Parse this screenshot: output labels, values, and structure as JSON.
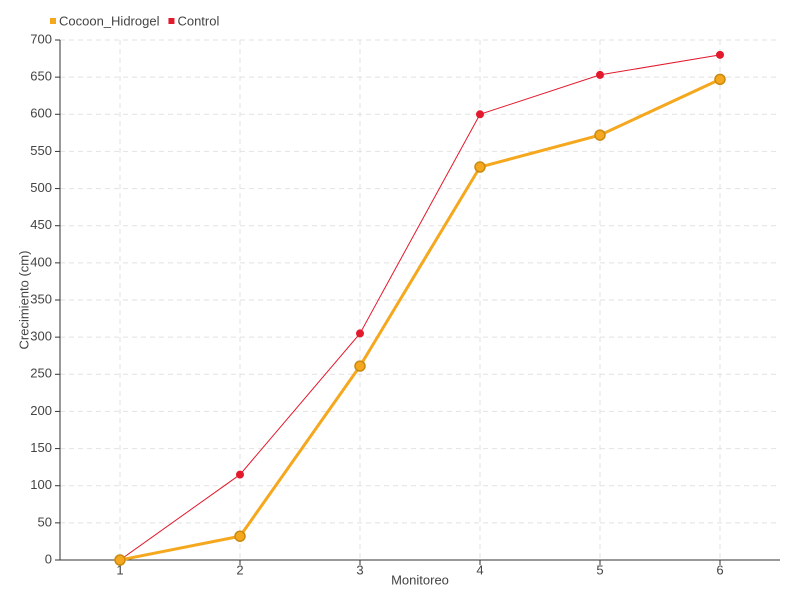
{
  "chart_data": {
    "type": "line",
    "x_label": "Monitoreo",
    "y_label": "Crecimiento (cm)",
    "x": [
      1,
      2,
      3,
      4,
      5,
      6
    ],
    "series": [
      {
        "name": "Cocoon_Hidrogel",
        "color": "#f5a81e",
        "values": [
          0,
          32,
          261,
          529,
          572,
          647
        ]
      },
      {
        "name": "Control",
        "color": "#e3192c",
        "values": [
          0,
          115,
          305,
          600,
          653,
          680
        ]
      }
    ],
    "xlim": [
      0.5,
      6.5
    ],
    "xticks": [
      1,
      2,
      3,
      4,
      5,
      6
    ],
    "ylim": [
      0,
      700
    ],
    "yticks": [
      0,
      50,
      100,
      150,
      200,
      250,
      300,
      350,
      400,
      450,
      500,
      550,
      600,
      650,
      700
    ],
    "grid": true,
    "legend": "top-left"
  }
}
